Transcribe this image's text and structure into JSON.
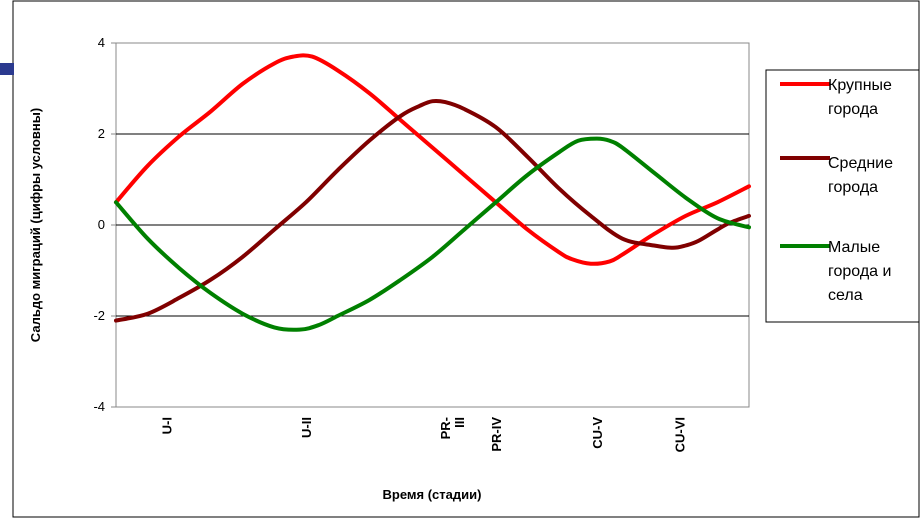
{
  "chart_data": {
    "type": "line",
    "title": "",
    "xlabel": "Время (стадии)",
    "ylabel": "Сальдо миграций (цифры условны)",
    "ylim": [
      -4,
      4
    ],
    "yticks": [
      -4,
      -2,
      0,
      2,
      4
    ],
    "grid": "horizontal at 2, 0, -2",
    "legend_position": "right",
    "x_range": [
      0,
      100
    ],
    "stages": [
      {
        "label": "U-I",
        "x": 8
      },
      {
        "label": "U-II",
        "x": 30
      },
      {
        "label": "PR-III",
        "x": 52
      },
      {
        "label": "PR-IV",
        "x": 60
      },
      {
        "label": "CU-V",
        "x": 76
      },
      {
        "label": "CU-VI",
        "x": 89
      }
    ],
    "series": [
      {
        "name": "Крупные города",
        "color": "#ff0000",
        "x": [
          0,
          5,
          10,
          15,
          20,
          25,
          28,
          31,
          35,
          40,
          45,
          50,
          55,
          60,
          65,
          70,
          72,
          75,
          78,
          80,
          85,
          90,
          95,
          100
        ],
        "y": [
          0.5,
          1.3,
          1.95,
          2.5,
          3.1,
          3.55,
          3.7,
          3.7,
          3.4,
          2.9,
          2.3,
          1.7,
          1.1,
          0.5,
          -0.1,
          -0.6,
          -0.75,
          -0.85,
          -0.8,
          -0.65,
          -0.2,
          0.2,
          0.5,
          0.85
        ]
      },
      {
        "name": "Средние города",
        "color": "#800000",
        "x": [
          0,
          5,
          10,
          15,
          20,
          25,
          30,
          35,
          40,
          45,
          48,
          50,
          52,
          55,
          60,
          65,
          70,
          75,
          80,
          85,
          88,
          90,
          92,
          95,
          97,
          100
        ],
        "y": [
          -2.1,
          -1.95,
          -1.6,
          -1.2,
          -0.7,
          -0.1,
          0.5,
          1.2,
          1.85,
          2.4,
          2.62,
          2.72,
          2.7,
          2.55,
          2.15,
          1.5,
          0.8,
          0.2,
          -0.3,
          -0.45,
          -0.5,
          -0.45,
          -0.35,
          -0.1,
          0.05,
          0.2
        ]
      },
      {
        "name": "Малые города и села",
        "color": "#008000",
        "x": [
          0,
          5,
          10,
          15,
          20,
          25,
          29,
          32,
          35,
          40,
          45,
          50,
          55,
          60,
          65,
          70,
          73,
          76,
          78,
          80,
          85,
          90,
          95,
          100
        ],
        "y": [
          0.5,
          -0.3,
          -0.95,
          -1.5,
          -1.95,
          -2.25,
          -2.3,
          -2.2,
          -2.0,
          -1.65,
          -1.2,
          -0.7,
          -0.1,
          0.5,
          1.1,
          1.6,
          1.85,
          1.9,
          1.85,
          1.7,
          1.15,
          0.6,
          0.15,
          -0.05
        ]
      }
    ],
    "legend_labels": [
      [
        "Крупные",
        "города"
      ],
      [
        "Средние",
        "города"
      ],
      [
        "Малые",
        "города и",
        "села"
      ]
    ]
  }
}
